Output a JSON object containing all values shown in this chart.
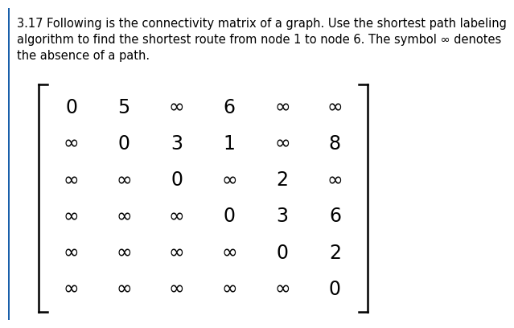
{
  "title_text": "3.17 Following is the connectivity matrix of a graph. Use the shortest path labeling\nalgorithm to find the shortest route from node 1 to node 6. The symbol ∞ denotes\nthe absence of a path.",
  "matrix": [
    [
      "0",
      "5",
      "∞",
      "6",
      "∞",
      "∞"
    ],
    [
      "∞",
      "0",
      "3",
      "1",
      "∞",
      "8"
    ],
    [
      "∞",
      "∞",
      "0",
      "∞",
      "2",
      "∞"
    ],
    [
      "∞",
      "∞",
      "∞",
      "0",
      "3",
      "6"
    ],
    [
      "∞",
      "∞",
      "∞",
      "∞",
      "0",
      "2"
    ],
    [
      "∞",
      "∞",
      "∞",
      "∞",
      "∞",
      "0"
    ]
  ],
  "n_rows": 6,
  "n_cols": 6,
  "bg_color": "#ffffff",
  "text_color": "#000000",
  "bracket_color": "#000000",
  "title_fontsize": 10.5,
  "matrix_fontsize": 17,
  "blue_bar_color": "#1a5faa",
  "blue_bar_width": 0.004
}
